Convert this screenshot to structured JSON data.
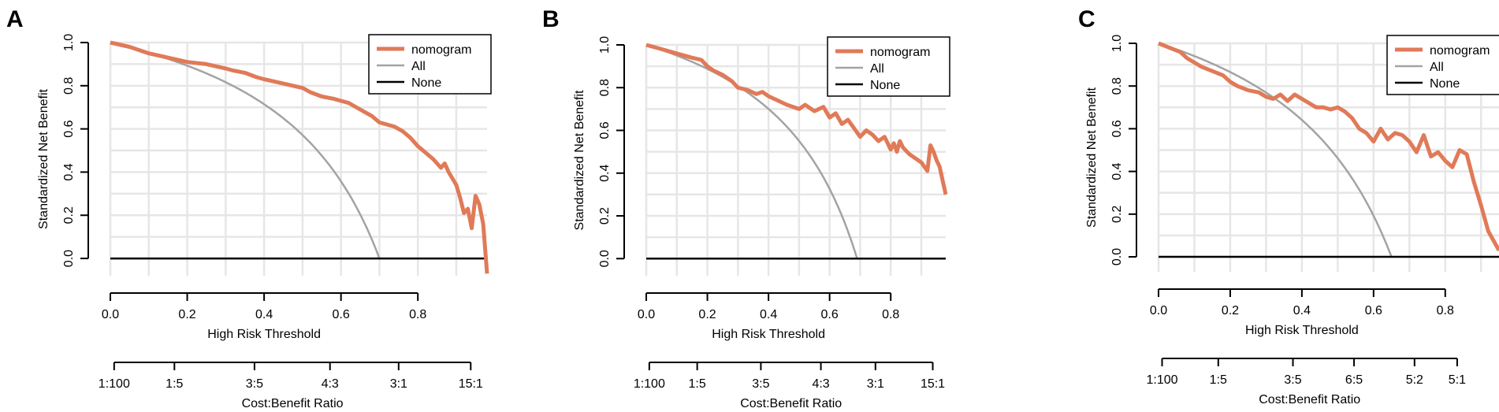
{
  "colors": {
    "nomogram": "#e07a58",
    "all": "#a3a3a3",
    "none": "#000000",
    "grid": "#e6e6e6"
  },
  "chart_data": [
    {
      "type": "line",
      "panel_label": "A",
      "ylabel": "Standardized Net Benefit",
      "xlabel": "High Risk Threshold",
      "xlim": [
        0,
        0.98
      ],
      "ylim": [
        -0.08,
        1.0
      ],
      "y_ticks": [
        "0.0",
        "0.2",
        "0.4",
        "0.6",
        "0.8",
        "1.0"
      ],
      "y_tick_values": [
        0,
        0.2,
        0.4,
        0.6,
        0.8,
        1.0
      ],
      "x_ticks": [
        "0.0",
        "0.2",
        "0.4",
        "0.6",
        "0.8"
      ],
      "x_tick_values": [
        0,
        0.2,
        0.4,
        0.6,
        0.8
      ],
      "ratio_label": "Cost:Benefit Ratio",
      "ratio_ticks": [
        "1:100",
        "1:5",
        "3:5",
        "4:3",
        "3:1",
        "15:1"
      ],
      "ratio_tick_positions": [
        0.0099,
        0.1667,
        0.375,
        0.5714,
        0.75,
        0.9375
      ],
      "legend": [
        "nomogram",
        "All",
        "None"
      ],
      "prevalence": 0.7,
      "series": [
        {
          "name": "nomogram",
          "x": [
            0,
            0.05,
            0.1,
            0.15,
            0.2,
            0.25,
            0.3,
            0.32,
            0.35,
            0.38,
            0.4,
            0.45,
            0.5,
            0.52,
            0.55,
            0.58,
            0.6,
            0.62,
            0.65,
            0.68,
            0.7,
            0.72,
            0.74,
            0.76,
            0.78,
            0.8,
            0.82,
            0.84,
            0.86,
            0.87,
            0.88,
            0.9,
            0.91,
            0.92,
            0.93,
            0.94,
            0.95,
            0.96,
            0.97,
            0.98
          ],
          "y": [
            1.0,
            0.98,
            0.95,
            0.93,
            0.91,
            0.9,
            0.88,
            0.87,
            0.86,
            0.84,
            0.83,
            0.81,
            0.79,
            0.77,
            0.75,
            0.74,
            0.73,
            0.72,
            0.69,
            0.66,
            0.63,
            0.62,
            0.61,
            0.59,
            0.56,
            0.52,
            0.49,
            0.46,
            0.42,
            0.44,
            0.4,
            0.34,
            0.28,
            0.21,
            0.23,
            0.14,
            0.29,
            0.25,
            0.16,
            -0.07
          ]
        },
        {
          "name": "All",
          "type": "treat_all"
        },
        {
          "name": "None",
          "type": "constant",
          "value": 0
        }
      ]
    },
    {
      "type": "line",
      "panel_label": "B",
      "ylabel": "Standardized Net Benefit",
      "xlabel": "High Risk Threshold",
      "xlim": [
        0,
        0.98
      ],
      "ylim": [
        -0.08,
        1.0
      ],
      "y_ticks": [
        "0.0",
        "0.2",
        "0.4",
        "0.6",
        "0.8",
        "1.0"
      ],
      "y_tick_values": [
        0,
        0.2,
        0.4,
        0.6,
        0.8,
        1.0
      ],
      "x_ticks": [
        "0.0",
        "0.2",
        "0.4",
        "0.6",
        "0.8"
      ],
      "x_tick_values": [
        0,
        0.2,
        0.4,
        0.6,
        0.8
      ],
      "ratio_label": "Cost:Benefit Ratio",
      "ratio_ticks": [
        "1:100",
        "1:5",
        "3:5",
        "4:3",
        "3:1",
        "15:1"
      ],
      "ratio_tick_positions": [
        0.0099,
        0.1667,
        0.375,
        0.5714,
        0.75,
        0.9375
      ],
      "legend": [
        "nomogram",
        "All",
        "None"
      ],
      "prevalence": 0.69,
      "series": [
        {
          "name": "nomogram",
          "x": [
            0,
            0.05,
            0.1,
            0.15,
            0.18,
            0.2,
            0.22,
            0.25,
            0.28,
            0.3,
            0.33,
            0.36,
            0.38,
            0.4,
            0.43,
            0.46,
            0.5,
            0.52,
            0.55,
            0.58,
            0.6,
            0.62,
            0.64,
            0.66,
            0.68,
            0.7,
            0.72,
            0.74,
            0.76,
            0.78,
            0.8,
            0.81,
            0.82,
            0.83,
            0.84,
            0.86,
            0.88,
            0.9,
            0.92,
            0.93,
            0.94,
            0.95,
            0.96,
            0.98
          ],
          "y": [
            1.0,
            0.98,
            0.96,
            0.94,
            0.93,
            0.9,
            0.88,
            0.86,
            0.83,
            0.8,
            0.79,
            0.77,
            0.78,
            0.76,
            0.74,
            0.72,
            0.7,
            0.72,
            0.69,
            0.71,
            0.66,
            0.68,
            0.63,
            0.65,
            0.61,
            0.57,
            0.6,
            0.58,
            0.55,
            0.57,
            0.51,
            0.54,
            0.5,
            0.55,
            0.52,
            0.49,
            0.47,
            0.45,
            0.41,
            0.53,
            0.5,
            0.46,
            0.43,
            0.3
          ]
        },
        {
          "name": "All",
          "type": "treat_all"
        },
        {
          "name": "None",
          "type": "constant",
          "value": 0
        }
      ]
    },
    {
      "type": "line",
      "panel_label": "C",
      "ylabel": "Standardized Net Benefit",
      "xlabel": "High Risk Threshold",
      "xlim": [
        0,
        0.95
      ],
      "ylim": [
        -0.07,
        1.0
      ],
      "y_ticks": [
        "0.0",
        "0.2",
        "0.4",
        "0.6",
        "0.8",
        "1.0"
      ],
      "y_tick_values": [
        0,
        0.2,
        0.4,
        0.6,
        0.8,
        1.0
      ],
      "x_ticks": [
        "0.0",
        "0.2",
        "0.4",
        "0.6",
        "0.8"
      ],
      "x_tick_values": [
        0,
        0.2,
        0.4,
        0.6,
        0.8
      ],
      "ratio_label": "Cost:Benefit Ratio",
      "ratio_ticks": [
        "1:100",
        "1:5",
        "3:5",
        "6:5",
        "5:2",
        "5:1"
      ],
      "ratio_tick_positions": [
        0.0099,
        0.1667,
        0.375,
        0.5455,
        0.7143,
        0.8333
      ],
      "legend": [
        "nomogram",
        "All",
        "None"
      ],
      "prevalence": 0.65,
      "series": [
        {
          "name": "nomogram",
          "x": [
            0,
            0.03,
            0.06,
            0.08,
            0.1,
            0.12,
            0.15,
            0.18,
            0.2,
            0.22,
            0.25,
            0.28,
            0.3,
            0.32,
            0.34,
            0.36,
            0.38,
            0.4,
            0.42,
            0.44,
            0.46,
            0.48,
            0.5,
            0.52,
            0.54,
            0.56,
            0.58,
            0.6,
            0.62,
            0.64,
            0.66,
            0.68,
            0.7,
            0.72,
            0.74,
            0.76,
            0.78,
            0.8,
            0.82,
            0.84,
            0.86,
            0.88,
            0.9,
            0.92,
            0.95
          ],
          "y": [
            1.0,
            0.98,
            0.96,
            0.93,
            0.91,
            0.89,
            0.87,
            0.85,
            0.82,
            0.8,
            0.78,
            0.77,
            0.75,
            0.74,
            0.76,
            0.73,
            0.76,
            0.74,
            0.72,
            0.7,
            0.7,
            0.69,
            0.7,
            0.68,
            0.65,
            0.6,
            0.58,
            0.54,
            0.6,
            0.55,
            0.58,
            0.57,
            0.54,
            0.49,
            0.57,
            0.47,
            0.49,
            0.45,
            0.42,
            0.5,
            0.48,
            0.35,
            0.24,
            0.12,
            0.03
          ]
        },
        {
          "name": "All",
          "type": "treat_all"
        },
        {
          "name": "None",
          "type": "constant",
          "value": 0
        }
      ]
    }
  ]
}
